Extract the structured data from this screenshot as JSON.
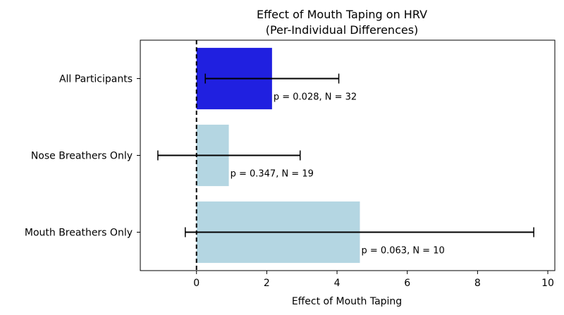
{
  "chart_data": {
    "type": "bar",
    "orientation": "horizontal",
    "title": "Effect of Mouth Taping on HRV",
    "subtitle": "(Per-Individual Differences)",
    "xlabel": "Effect of Mouth Taping",
    "ylabel": "",
    "xlim": [
      -1.6,
      10.2
    ],
    "xticks": [
      0,
      2,
      4,
      6,
      8,
      10
    ],
    "categories": [
      "All Participants",
      "Nose Breathers Only",
      "Mouth Breathers Only"
    ],
    "values": [
      2.15,
      0.92,
      4.65
    ],
    "error_low": [
      0.25,
      -1.1,
      -0.32
    ],
    "error_high": [
      4.05,
      2.95,
      9.6
    ],
    "annotations": [
      "p = 0.028, N = 32",
      "p = 0.347, N = 19",
      "p = 0.063, N = 10"
    ],
    "colors": [
      "#2020e0",
      "#b4d6e2",
      "#b4d6e2"
    ],
    "reference_line": {
      "x": 0,
      "style": "dashed",
      "color": "#000000"
    },
    "grid": false,
    "legend": "none"
  }
}
